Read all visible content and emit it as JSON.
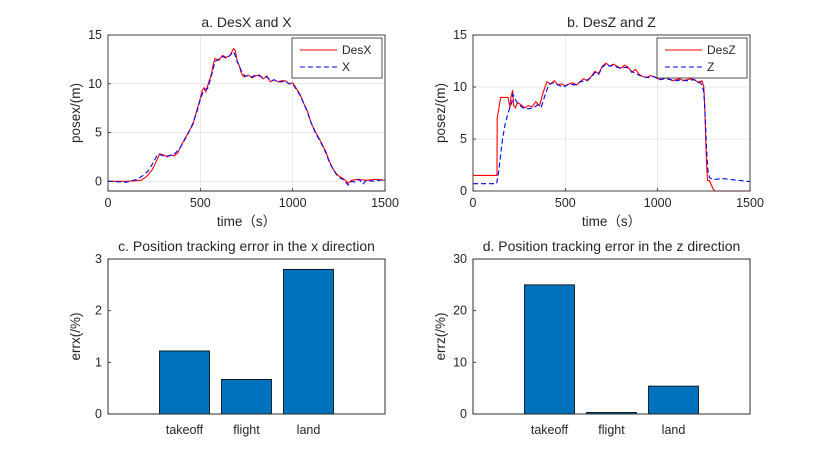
{
  "colors": {
    "desired": "#ff0000",
    "actual": "#0000ff",
    "bar": "#0072bd",
    "bar_edge": "#000000"
  },
  "chart_data": [
    {
      "type": "line",
      "title": "a.  DesX and X",
      "xlabel": "time（s）",
      "ylabel": "posex/(m)",
      "xlim": [
        0,
        1500
      ],
      "ylim": [
        -1,
        15
      ],
      "xticks": [
        0,
        500,
        1000,
        1500
      ],
      "yticks": [
        0,
        5,
        10,
        15
      ],
      "grid": true,
      "legend_position": "top-right",
      "series": [
        {
          "name": "DesX",
          "style": "solid",
          "x": [
            0,
            100,
            180,
            210,
            240,
            260,
            280,
            300,
            320,
            340,
            360,
            380,
            400,
            420,
            440,
            460,
            480,
            500,
            510,
            520,
            530,
            540,
            560,
            570,
            580,
            600,
            620,
            640,
            660,
            680,
            690,
            700,
            710,
            720,
            730,
            740,
            760,
            780,
            800,
            820,
            840,
            860,
            880,
            900,
            920,
            940,
            960,
            980,
            1000,
            1020,
            1040,
            1060,
            1080,
            1100,
            1120,
            1140,
            1160,
            1180,
            1200,
            1220,
            1240,
            1260,
            1280,
            1300,
            1320,
            1350,
            1400,
            1450,
            1500
          ],
          "y": [
            0,
            0,
            0.1,
            0.5,
            1.2,
            2.0,
            2.8,
            2.7,
            2.5,
            2.7,
            2.6,
            3.0,
            3.8,
            4.5,
            5.2,
            5.8,
            7.2,
            8.5,
            9.3,
            9.6,
            9.2,
            9.8,
            11.0,
            12.0,
            12.6,
            12.4,
            12.9,
            12.7,
            12.9,
            13.6,
            13.4,
            12.2,
            11.9,
            11.2,
            10.8,
            10.7,
            10.9,
            10.6,
            10.8,
            10.9,
            10.5,
            10.8,
            10.2,
            10.4,
            10.2,
            10.3,
            10.3,
            10.0,
            10.1,
            9.5,
            8.9,
            8.0,
            7.2,
            6.0,
            5.2,
            4.5,
            3.8,
            3.0,
            2.0,
            1.2,
            0.7,
            0.4,
            0.2,
            -0.2,
            0.1,
            0.2,
            0.1,
            0.2,
            0.1
          ]
        },
        {
          "name": "X",
          "style": "dashed",
          "x": [
            0,
            100,
            160,
            190,
            220,
            250,
            270,
            300,
            330,
            360,
            390,
            420,
            450,
            480,
            500,
            520,
            540,
            560,
            580,
            600,
            620,
            640,
            660,
            680,
            700,
            720,
            740,
            760,
            780,
            800,
            820,
            840,
            860,
            880,
            900,
            920,
            940,
            960,
            980,
            1000,
            1020,
            1040,
            1060,
            1080,
            1100,
            1120,
            1140,
            1160,
            1180,
            1200,
            1220,
            1240,
            1260,
            1280,
            1300,
            1320,
            1340,
            1360,
            1380,
            1400,
            1440,
            1500
          ],
          "y": [
            0,
            -0.1,
            0.2,
            0.6,
            1.1,
            2.1,
            2.8,
            2.6,
            2.6,
            2.8,
            3.4,
            4.4,
            5.5,
            7.0,
            8.4,
            9.4,
            9.5,
            10.8,
            12.3,
            12.5,
            12.8,
            12.6,
            12.9,
            13.3,
            12.3,
            11.4,
            10.8,
            10.8,
            10.7,
            10.9,
            10.8,
            10.6,
            10.7,
            10.3,
            10.4,
            10.2,
            10.2,
            10.3,
            10.0,
            10.0,
            9.4,
            8.8,
            8.0,
            7.1,
            6.0,
            5.1,
            4.4,
            3.7,
            2.9,
            1.9,
            1.2,
            0.6,
            0.3,
            0.1,
            -0.4,
            0.0,
            -0.1,
            0.2,
            -0.3,
            0.1,
            0.0,
            0.2
          ]
        }
      ]
    },
    {
      "type": "line",
      "title": "b.  DesZ and Z",
      "xlabel": "time（s）",
      "ylabel": "posez/(m)",
      "xlim": [
        0,
        1500
      ],
      "ylim": [
        0,
        15
      ],
      "xticks": [
        0,
        500,
        1000,
        1500
      ],
      "yticks": [
        0,
        5,
        10,
        15
      ],
      "grid": true,
      "legend_position": "top-right",
      "series": [
        {
          "name": "DesZ",
          "style": "solid",
          "x": [
            0,
            130,
            131,
            140,
            150,
            160,
            180,
            190,
            200,
            205,
            215,
            220,
            230,
            240,
            260,
            280,
            300,
            320,
            340,
            360,
            380,
            400,
            420,
            440,
            460,
            480,
            500,
            520,
            540,
            560,
            580,
            600,
            620,
            640,
            660,
            680,
            700,
            720,
            740,
            760,
            780,
            800,
            820,
            840,
            860,
            880,
            900,
            920,
            940,
            960,
            980,
            1000,
            1020,
            1040,
            1060,
            1080,
            1100,
            1120,
            1140,
            1160,
            1180,
            1200,
            1220,
            1240,
            1250,
            1255,
            1260,
            1265,
            1270,
            1280,
            1300,
            1310,
            1500
          ],
          "y": [
            1.5,
            1.5,
            7.0,
            8.0,
            9.0,
            9.0,
            9.0,
            9.0,
            8.0,
            9.0,
            9.7,
            8.2,
            8.0,
            8.5,
            8.3,
            8.0,
            8.2,
            8.1,
            8.6,
            8.2,
            9.5,
            10.5,
            10.3,
            10.6,
            10.2,
            10.3,
            10.1,
            10.3,
            10.4,
            10.2,
            10.5,
            10.8,
            10.6,
            11.0,
            11.5,
            11.3,
            12.0,
            12.3,
            12.0,
            12.2,
            12.0,
            11.8,
            12.1,
            11.9,
            11.4,
            11.7,
            11.2,
            11.0,
            10.9,
            11.1,
            11.0,
            10.8,
            10.7,
            10.9,
            10.8,
            10.6,
            10.7,
            10.8,
            10.6,
            10.7,
            10.8,
            10.7,
            10.4,
            10.6,
            10.0,
            8.0,
            5.0,
            2.5,
            1.0,
            1.0,
            0.2,
            0.0,
            0.0
          ]
        },
        {
          "name": "Z",
          "style": "dashed",
          "x": [
            0,
            128,
            140,
            150,
            160,
            175,
            190,
            200,
            210,
            215,
            225,
            235,
            250,
            270,
            300,
            330,
            350,
            370,
            390,
            410,
            430,
            460,
            490,
            520,
            550,
            580,
            610,
            640,
            660,
            680,
            700,
            720,
            740,
            760,
            780,
            800,
            830,
            860,
            890,
            920,
            950,
            980,
            1010,
            1040,
            1070,
            1100,
            1130,
            1160,
            1190,
            1220,
            1240,
            1250,
            1258,
            1265,
            1272,
            1280,
            1300,
            1350,
            1400,
            1450,
            1500
          ],
          "y": [
            0.7,
            0.7,
            2.0,
            3.5,
            5.0,
            6.5,
            7.5,
            8.0,
            8.5,
            9.3,
            9.0,
            8.6,
            8.3,
            8.0,
            7.9,
            8.0,
            8.3,
            8.1,
            9.2,
            10.2,
            10.4,
            10.2,
            10.0,
            10.3,
            10.2,
            10.5,
            10.6,
            10.9,
            11.4,
            11.2,
            11.9,
            12.2,
            12.0,
            12.1,
            11.9,
            11.8,
            11.9,
            11.5,
            11.2,
            11.0,
            10.9,
            11.0,
            10.7,
            10.8,
            10.7,
            10.6,
            10.7,
            10.6,
            10.7,
            10.6,
            10.2,
            9.5,
            7.0,
            4.0,
            2.0,
            1.3,
            1.1,
            1.2,
            1.1,
            1.0,
            0.9
          ]
        }
      ]
    },
    {
      "type": "bar",
      "title": "c. Position tracking error in the x direction",
      "xlabel": "",
      "ylabel": "errx(/%)",
      "categories": [
        "takeoff",
        "flight",
        "land"
      ],
      "values": [
        1.22,
        0.67,
        2.8
      ],
      "ylim": [
        0,
        3
      ],
      "yticks": [
        0,
        1,
        2,
        3
      ],
      "grid": false
    },
    {
      "type": "bar",
      "title": "d. Position tracking error in the z direction",
      "xlabel": "",
      "ylabel": "errz(/%)",
      "categories": [
        "takeoff",
        "flight",
        "land"
      ],
      "values": [
        25,
        0.3,
        5.4
      ],
      "ylim": [
        0,
        30
      ],
      "yticks": [
        0,
        10,
        20,
        30
      ],
      "grid": false
    }
  ]
}
